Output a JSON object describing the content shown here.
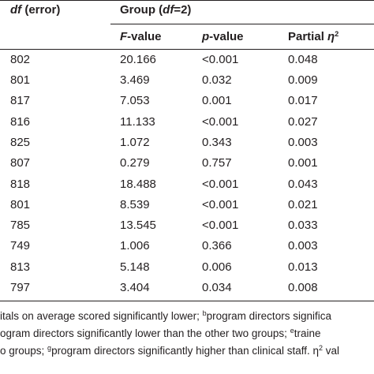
{
  "header": {
    "df_error": {
      "italic": "df",
      "rest": " (error)"
    },
    "group": {
      "pre": "Group (",
      "italic": "df",
      "post": "=2)"
    },
    "f_value": {
      "italic": "F",
      "rest": "-value"
    },
    "p_value": {
      "italic": "p",
      "rest": "-value"
    },
    "partial_eta": {
      "pre": "Partial ",
      "italic": "η",
      "sup": "2"
    }
  },
  "rows": [
    [
      "802",
      "20.166",
      "<0.001",
      "0.048"
    ],
    [
      "801",
      "3.469",
      "0.032",
      "0.009"
    ],
    [
      "817",
      "7.053",
      "0.001",
      "0.017"
    ],
    [
      "816",
      "11.133",
      "<0.001",
      "0.027"
    ],
    [
      "825",
      "1.072",
      "0.343",
      "0.003"
    ],
    [
      "807",
      "0.279",
      "0.757",
      "0.001"
    ],
    [
      "818",
      "18.488",
      "<0.001",
      "0.043"
    ],
    [
      "801",
      "8.539",
      "<0.001",
      "0.021"
    ],
    [
      "785",
      "13.545",
      "<0.001",
      "0.033"
    ],
    [
      "749",
      "1.006",
      "0.366",
      "0.003"
    ],
    [
      "813",
      "5.148",
      "0.006",
      "0.013"
    ],
    [
      "797",
      "3.404",
      "0.034",
      "0.008"
    ]
  ],
  "footnotes": {
    "line1": {
      "a": "itals on average scored significantly lower; ",
      "sup": "b",
      "b": "program directors significa"
    },
    "line2": {
      "a": "ogram directors significantly lower than the other two groups; ",
      "sup": "e",
      "b": "traine"
    },
    "line3": {
      "a": "o groups; ",
      "sup": "g",
      "b": "program directors significantly higher than clinical staff. η",
      "sup2": "2",
      "c": " val"
    }
  }
}
